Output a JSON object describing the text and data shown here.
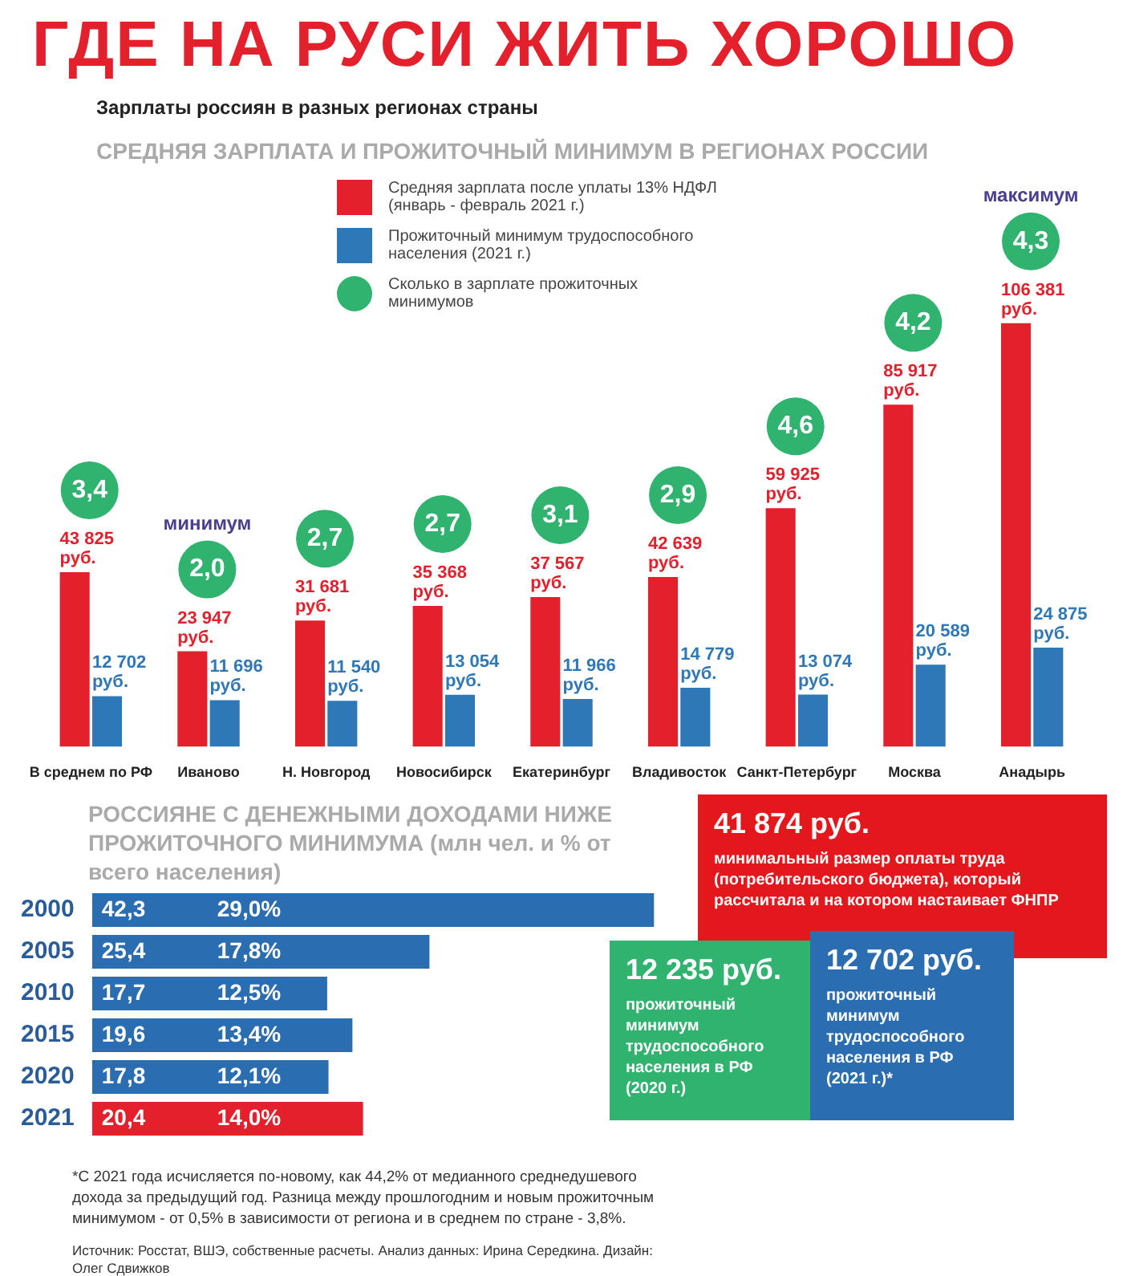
{
  "chart_data": [
    {
      "type": "bar",
      "title": "ГДЕ НА РУСИ ЖИТЬ ХОРОШО",
      "subtitle": "Зарплаты россиян в разных регионах страны",
      "categories": [
        "В среднем по РФ",
        "Иваново",
        "Н. Новгород",
        "Новосибирск",
        "Екатеринбург",
        "Владивосток",
        "Санкт-Петербург",
        "Москва",
        "Анадырь"
      ],
      "series": [
        {
          "name": "Средняя зарплата после уплаты 13% НДФЛ (январь - февраль 2021 г.)",
          "color": "#e3202b",
          "values": [
            43825,
            23947,
            31681,
            35368,
            37567,
            42639,
            59925,
            85917,
            106381
          ],
          "value_labels": [
            "43 825 руб.",
            "23 947 руб.",
            "31 681 руб.",
            "35 368 руб.",
            "37 567 руб.",
            "42 639 руб.",
            "59 925 руб.",
            "85 917 руб.",
            "106 381 руб."
          ]
        },
        {
          "name": "Прожиточный минимум трудоспособного населения (2021 г.)",
          "color": "#2f78b8",
          "values": [
            12702,
            11696,
            11540,
            13054,
            11966,
            14779,
            13074,
            20589,
            24875
          ],
          "value_labels": [
            "12 702 руб.",
            "11 696 руб.",
            "11 540 руб.",
            "13 054 руб.",
            "11 966 руб.",
            "14 779 руб.",
            "13 074 руб.",
            "20 589 руб.",
            "24 875 руб."
          ]
        }
      ],
      "legend": "top left",
      "annotations": [
        "СРЕДНЯЯ ЗАРПЛАТА И ПРОЖИТОЧНЫЙ МИНИМУМ В РЕГИОНАХ РОССИИ",
        "минимум",
        "максимум",
        "Сколько в зарплате прожиточных минимумов",
        "3,4",
        "2,0",
        "2,7",
        "2,7",
        "3,1",
        "2,9",
        "4,6",
        "4,2",
        "4,3"
      ]
    },
    {
      "type": "bar",
      "orientation": "horizontal",
      "title": "РОССИЯНЕ С ДЕНЕЖНЫМИ ДОХОДАМИ НИЖЕ ПРОЖИТОЧНОГО МИНИМУМА (млн чел. и % от всего населения)",
      "categories": [
        "2000",
        "2005",
        "2010",
        "2015",
        "2020",
        "2021"
      ],
      "values": [
        42.3,
        25.4,
        17.7,
        19.6,
        17.8,
        20.4
      ],
      "colors": [
        "#2a6db0",
        "#2a6db0",
        "#2a6db0",
        "#2a6db0",
        "#2a6db0",
        "#e3202b"
      ],
      "value_labels": [
        "42,3",
        "25,4",
        "17,7",
        "19,6",
        "17,8",
        "20,4"
      ],
      "annotations": [
        {
          "text": "29,0%",
          "y": "2000"
        },
        {
          "text": "17,8%",
          "y": "2005"
        },
        {
          "text": "12,5%",
          "y": "2010"
        },
        {
          "text": "13,4%",
          "y": "2015"
        },
        {
          "text": "12,1%",
          "y": "2020"
        },
        {
          "text": "14,0%",
          "y": "2021"
        },
        "*С 2021 года исчисляется по-новому, как 44,2% от медианного среднедушевого дохода за предыдущий год. Разница между прошлогодним и новым прожиточным минимумом - от 0,5% в зависимости от региона и в среднем по стране - 3,8%.",
        "Источник: Росстат, ВШЭ, собственные расчеты. Анализ данных: Ирина Середкина. Дизайн: Олег Сдвижков"
      ]
    },
    {
      "type": "other",
      "annotations": [
        "41 874 руб.",
        "минимальный размер оплаты труда (потребительского бюджета), который рассчитала и на котором настаивает ФНПР",
        "12 235 руб.",
        "прожиточный минимум трудоспособного населения в РФ (2020 г.)",
        "12 702 руб.",
        "прожиточный минимум трудоспособного населения в РФ (2021 г.)*"
      ],
      "colors": [
        "#e3171c",
        "#2fb36f",
        "#2a6db0"
      ]
    }
  ]
}
